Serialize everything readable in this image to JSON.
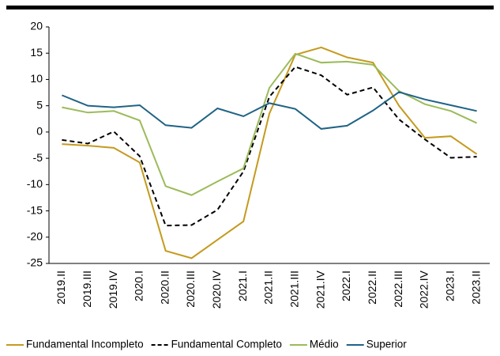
{
  "chart_data": {
    "type": "line",
    "categories": [
      "2019.II",
      "2019.III",
      "2019.IV",
      "2020.I",
      "2020.II",
      "2020.III",
      "2020.IV",
      "2021.I",
      "2021.II",
      "2021.III",
      "2021.IV",
      "2022.I",
      "2022.II",
      "2022.III",
      "2022.IV",
      "2023.I",
      "2023.II"
    ],
    "series": [
      {
        "name": "Fundamental Incompleto",
        "color": "#c59a1e",
        "dash": false,
        "values": [
          -2.3,
          -2.6,
          -3,
          -5.8,
          -22.6,
          -24,
          -20.5,
          -17,
          3.5,
          14.7,
          16.1,
          14.2,
          13.2,
          5,
          -1.1,
          -0.8,
          -4.2
        ]
      },
      {
        "name": "Fundamental Completo",
        "color": "#000000",
        "dash": true,
        "values": [
          -1.5,
          -2.2,
          0.1,
          -4.6,
          -17.8,
          -17.7,
          -14.8,
          -7.5,
          6.7,
          12.4,
          10.8,
          7.1,
          8.5,
          2.4,
          -1.4,
          -4.9,
          -4.7
        ]
      },
      {
        "name": "Médio",
        "color": "#9bbb59",
        "dash": false,
        "values": [
          4.7,
          3.7,
          4,
          2.2,
          -10.3,
          -12,
          -9.4,
          -6.9,
          8.4,
          14.9,
          13.2,
          13.4,
          12.8,
          7.8,
          5.3,
          4,
          1.7
        ]
      },
      {
        "name": "Superior",
        "color": "#1f6386",
        "dash": false,
        "values": [
          7,
          5,
          4.7,
          5.1,
          1.3,
          0.8,
          4.5,
          3,
          5.5,
          4.4,
          0.6,
          1.2,
          4.1,
          7.6,
          6.2,
          5.1,
          4
        ]
      }
    ],
    "ylim": [
      -25,
      20
    ],
    "yticks": [
      20,
      15,
      10,
      5,
      0,
      -5,
      -10,
      -15,
      -20,
      -25
    ],
    "grid": false
  }
}
